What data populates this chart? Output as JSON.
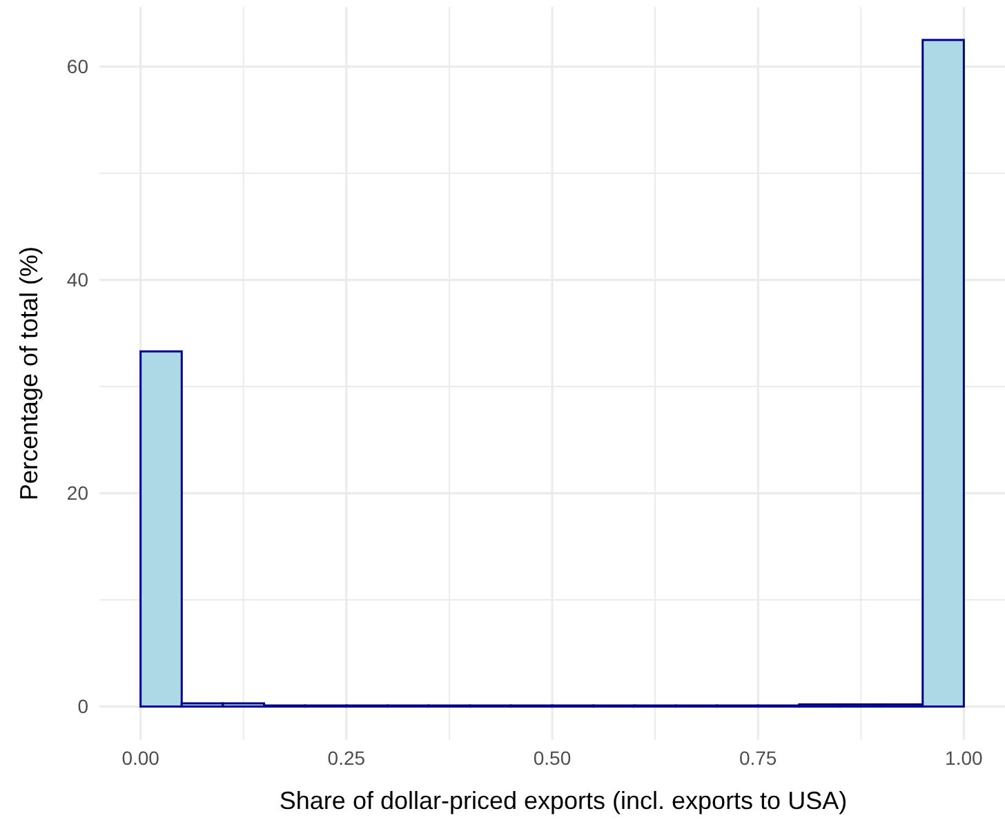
{
  "chart_data": {
    "type": "histogram",
    "xlabel": "Share of dollar-priced exports (incl. exports to USA)",
    "ylabel": "Percentage of total (%)",
    "bins": [
      0,
      0.05,
      0.1,
      0.15,
      0.2,
      0.25,
      0.3,
      0.35,
      0.4,
      0.45,
      0.5,
      0.55,
      0.6,
      0.65,
      0.7,
      0.75,
      0.8,
      0.85,
      0.9,
      0.95,
      1
    ],
    "values": [
      33.3,
      0.3,
      0.3,
      0.1,
      0.1,
      0.1,
      0.1,
      0.1,
      0.1,
      0.1,
      0.1,
      0.1,
      0.1,
      0.1,
      0.1,
      0.1,
      0.2,
      0.2,
      0.2,
      62.5
    ],
    "color": "#add8e6",
    "xlim": [
      -0.05,
      1.05
    ],
    "xticks": [
      {
        "value": 0,
        "label": "0.00"
      },
      {
        "value": 0.125,
        "label": null
      },
      {
        "value": 0.25,
        "label": "0.25"
      },
      {
        "value": 0.375,
        "label": null
      },
      {
        "value": 0.5,
        "label": "0.50"
      },
      {
        "value": 0.625,
        "label": null
      },
      {
        "value": 0.75,
        "label": "0.75"
      },
      {
        "value": 0.875,
        "label": null
      },
      {
        "value": 1,
        "label": "1.00"
      }
    ],
    "ylim": [
      -3.13,
      65.6
    ],
    "yticks": [
      0,
      {
        "value": 10,
        "label": null
      },
      20,
      {
        "value": 30,
        "label": null
      },
      40,
      {
        "value": 50,
        "label": null
      },
      60
    ],
    "grid": true
  }
}
